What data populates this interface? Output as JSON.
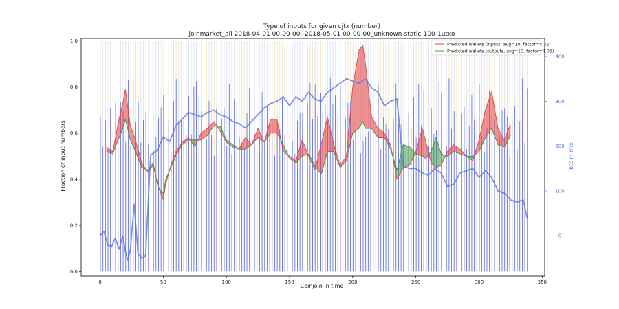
{
  "chart_data": {
    "type": "line",
    "title": "Type of inputs for given cjtx (number)",
    "subtitle": "joinmarket_all 2018-04-01 00-00-00--2018-05-01 00-00-00_unknown-static-100-1utxo",
    "xlabel": "Coinjoin in time",
    "ylabel": "Fraction of input numbers",
    "y2label": "btc in mix",
    "xlim": [
      -15,
      352
    ],
    "ylim": [
      -0.02,
      1.01
    ],
    "y2lim": [
      -90,
      440
    ],
    "x_ticks": [
      "0",
      "50",
      "100",
      "150",
      "200",
      "250",
      "300",
      "350"
    ],
    "y_ticks": [
      "0.0",
      "0.2",
      "0.4",
      "0.6",
      "0.8",
      "1.0"
    ],
    "y2_ticks": [
      "0",
      "100",
      "200",
      "300",
      "400"
    ],
    "legend": {
      "position": "top-right",
      "entries": [
        {
          "label": "Predicted wallets (inputs, avg=10, factor=4.32)",
          "color": "#f07060"
        },
        {
          "label": "Predicted wallets (outputs, avg=10, factor=4.05)",
          "color": "#6cb56c"
        }
      ]
    },
    "series": [
      {
        "name": "Predicted wallets (inputs, avg=10, factor=4.32)",
        "color": "#e34444",
        "x": [
          5,
          10,
          15,
          18,
          20,
          24,
          28,
          33,
          38,
          42,
          46,
          50,
          52,
          56,
          60,
          65,
          70,
          75,
          80,
          85,
          90,
          95,
          100,
          105,
          110,
          115,
          120,
          125,
          130,
          135,
          140,
          145,
          150,
          155,
          160,
          165,
          170,
          175,
          180,
          185,
          190,
          195,
          200,
          205,
          208,
          210,
          215,
          220,
          225,
          230,
          235,
          240,
          245,
          250,
          255,
          258,
          262,
          266,
          270,
          275,
          280,
          285,
          290,
          295,
          300,
          305,
          310,
          315,
          320,
          325
        ],
        "y": [
          0.54,
          0.52,
          0.66,
          0.73,
          0.79,
          0.63,
          0.57,
          0.47,
          0.43,
          0.46,
          0.37,
          0.31,
          0.38,
          0.46,
          0.52,
          0.56,
          0.58,
          0.54,
          0.6,
          0.62,
          0.65,
          0.61,
          0.56,
          0.54,
          0.53,
          0.58,
          0.55,
          0.62,
          0.56,
          0.66,
          0.66,
          0.52,
          0.5,
          0.48,
          0.57,
          0.5,
          0.44,
          0.55,
          0.67,
          0.55,
          0.46,
          0.5,
          0.8,
          0.96,
          0.98,
          0.9,
          0.67,
          0.62,
          0.6,
          0.55,
          0.4,
          0.45,
          0.46,
          0.52,
          0.62,
          0.56,
          0.47,
          0.45,
          0.46,
          0.52,
          0.55,
          0.53,
          0.5,
          0.48,
          0.57,
          0.7,
          0.78,
          0.62,
          0.57,
          0.64
        ]
      },
      {
        "name": "Predicted wallets (outputs, avg=10, factor=4.05)",
        "color": "#3f8f3f",
        "x": [
          5,
          10,
          15,
          18,
          20,
          24,
          28,
          33,
          38,
          42,
          46,
          50,
          52,
          56,
          60,
          65,
          70,
          75,
          80,
          85,
          90,
          95,
          100,
          105,
          110,
          115,
          120,
          125,
          130,
          135,
          140,
          145,
          150,
          155,
          160,
          165,
          170,
          175,
          180,
          185,
          190,
          195,
          200,
          205,
          208,
          210,
          215,
          220,
          225,
          230,
          235,
          240,
          245,
          250,
          255,
          258,
          262,
          266,
          270,
          275,
          280,
          285,
          290,
          295,
          300,
          305,
          310,
          315,
          320,
          325
        ],
        "y": [
          0.52,
          0.51,
          0.58,
          0.62,
          0.66,
          0.57,
          0.52,
          0.45,
          0.44,
          0.47,
          0.36,
          0.34,
          0.4,
          0.45,
          0.5,
          0.55,
          0.57,
          0.57,
          0.57,
          0.59,
          0.63,
          0.63,
          0.57,
          0.55,
          0.53,
          0.53,
          0.55,
          0.58,
          0.56,
          0.6,
          0.6,
          0.55,
          0.49,
          0.47,
          0.5,
          0.51,
          0.46,
          0.42,
          0.52,
          0.52,
          0.45,
          0.48,
          0.6,
          0.62,
          0.65,
          0.62,
          0.62,
          0.58,
          0.58,
          0.53,
          0.44,
          0.55,
          0.54,
          0.51,
          0.5,
          0.49,
          0.52,
          0.58,
          0.51,
          0.5,
          0.52,
          0.51,
          0.5,
          0.5,
          0.52,
          0.58,
          0.62,
          0.55,
          0.54,
          0.59
        ]
      },
      {
        "name": "btc in mix",
        "axis": "right",
        "color": "#5b74d8",
        "x": [
          0,
          3,
          6,
          9,
          12,
          15,
          18,
          20,
          22,
          24,
          27,
          30,
          33,
          36,
          40,
          45,
          50,
          55,
          60,
          65,
          70,
          75,
          80,
          85,
          90,
          95,
          100,
          105,
          110,
          115,
          120,
          125,
          130,
          135,
          140,
          145,
          150,
          155,
          160,
          165,
          170,
          175,
          180,
          185,
          190,
          195,
          200,
          205,
          210,
          215,
          220,
          225,
          230,
          235,
          240,
          245,
          250,
          255,
          260,
          265,
          270,
          275,
          280,
          285,
          290,
          295,
          300,
          305,
          310,
          315,
          320,
          325,
          330,
          335,
          338
        ],
        "y": [
          0,
          10,
          -20,
          -25,
          -5,
          -30,
          0,
          -35,
          -55,
          -30,
          70,
          -40,
          -50,
          -45,
          180,
          190,
          220,
          210,
          245,
          260,
          275,
          270,
          265,
          275,
          280,
          270,
          265,
          255,
          250,
          240,
          255,
          270,
          285,
          295,
          300,
          310,
          290,
          310,
          300,
          320,
          305,
          300,
          320,
          330,
          340,
          350,
          345,
          340,
          350,
          330,
          320,
          290,
          300,
          305,
          155,
          150,
          150,
          140,
          135,
          150,
          140,
          110,
          115,
          140,
          145,
          150,
          130,
          145,
          130,
          100,
          95,
          80,
          75,
          80,
          40
        ]
      }
    ],
    "background_bars": {
      "description": "stacked per-coinjoin input composition bars",
      "colors": [
        "#3b47d9",
        "#f5d889",
        "#c8ccf2"
      ]
    }
  }
}
